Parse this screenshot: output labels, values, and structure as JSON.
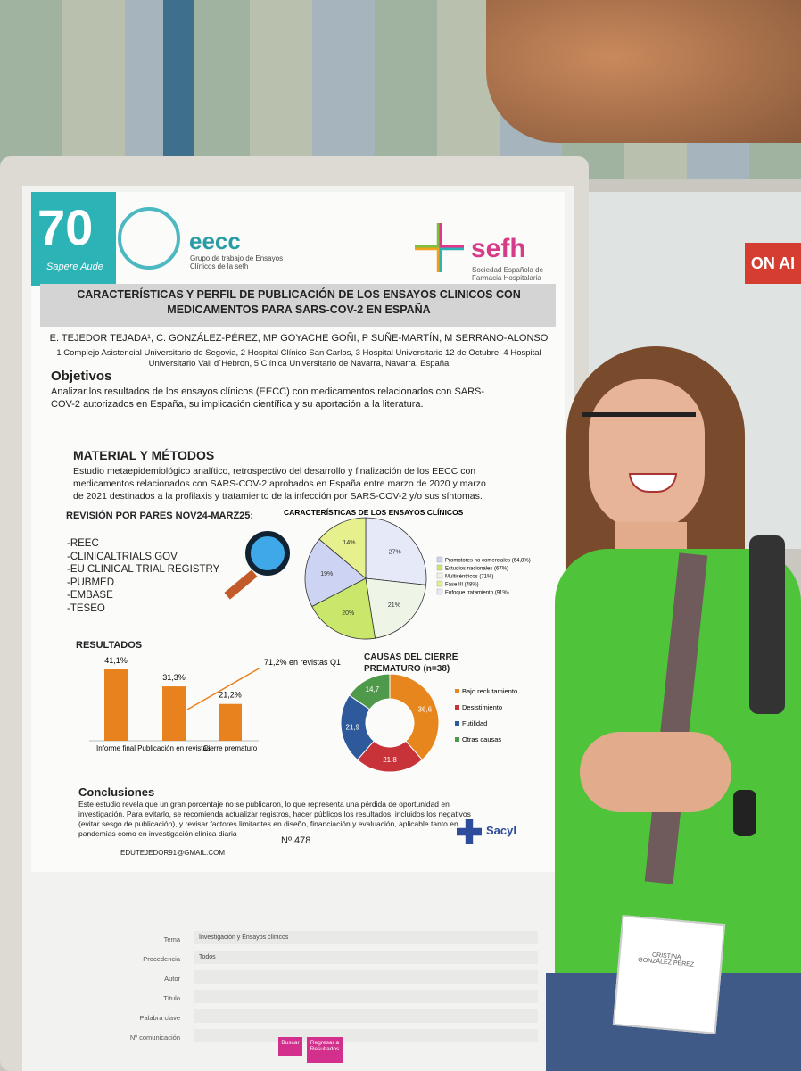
{
  "header": {
    "anniversary": "70",
    "motto": "Sapere Aude",
    "eecc": "eecc",
    "eecc_sub": "Grupo de trabajo de Ensayos Clínicos de la sefh",
    "sefh": "sefh",
    "sefh_sub": "Sociedad Española de Farmacia Hospitalaria"
  },
  "title": "CARACTERÍSTICAS Y PERFIL DE PUBLICACIÓN DE LOS ENSAYOS CLINICOS CON MEDICAMENTOS PARA SARS-COV-2 EN ESPAÑA",
  "authors": "E. TEJEDOR TEJADA¹, C. GONZÁLEZ-PÉREZ, MP GOYACHE GOÑI,  P SUÑE-MARTÍN, M SERRANO-ALONSO",
  "affiliations": "1 Complejo Asistencial Universitario de Segovia, 2 Hospital Clínico San Carlos, 3 Hospital Universitario 12 de Octubre, 4 Hospital Universitario Vall d´Hebron, 5 Clínica Universitario de Navarra, Navarra. España",
  "objetivos": {
    "heading": "Objetivos",
    "text": "Analizar los resultados de los ensayos clínicos (EECC) con medicamentos relacionados con SARS-COV-2 autorizados en España, su implicación científica y su aportación a la literatura."
  },
  "metodos": {
    "heading": "MATERIAL Y MÉTODOS",
    "text": "Estudio metaepidemiológico analítico, retrospectivo del desarrollo y finalización de los EECC con medicamentos relacionados con SARS-COV-2 aprobados en España entre marzo de 2020 y marzo de 2021 destinados a la profilaxis y tratamiento de la infección por SARS-COV-2  y/o sus síntomas."
  },
  "revision": {
    "heading": "REVISIÓN POR PARES NOV24-MARZ25:",
    "items": [
      "-REEC",
      "-CLINICALTRIALS.GOV",
      "-EU CLINICAL TRIAL REGISTRY",
      "-PUBMED",
      "-EMBASE",
      "-TESEO"
    ]
  },
  "pie": {
    "title": "CARACTERÍSTICAS DE LOS ENSAYOS CLÍNICOS",
    "values": [
      27,
      21,
      20,
      19,
      14
    ],
    "value_labels": [
      "27%",
      "21%",
      "20%",
      "19%",
      "14%"
    ],
    "colors": [
      "#e6e9f7",
      "#eef5e6",
      "#c9e86b",
      "#cdd3f2",
      "#e6f08c"
    ],
    "legend": [
      "Promotores no comerciales (64,8%)",
      "Estudios nacionales (67%)",
      "Multicéntricos (71%)",
      "Fase III (48%)",
      "Enfoque tratamiento (91%)"
    ],
    "legend_colors": [
      "#cdd3f2",
      "#c9e86b",
      "#eef5e6",
      "#e6f08c",
      "#e6e9f7"
    ]
  },
  "resultados": {
    "heading": "RESULTADOS",
    "categories": [
      "Informe final",
      "Publicación en revistas",
      "Cierre prematuro"
    ],
    "values": [
      41.1,
      31.3,
      21.2
    ],
    "value_labels": [
      "41,1%",
      "31,3%",
      "21,2%"
    ],
    "color": "#e8821e",
    "annotation": "71,2% en revistas Q1"
  },
  "donut": {
    "title": "CAUSAS DEL CIERRE PREMATURO (n=38)",
    "values": [
      36.6,
      21.8,
      21.9,
      14.7
    ],
    "value_labels": [
      "36,6",
      "21,8",
      "21,9",
      "14,7"
    ],
    "colors": [
      "#e8861e",
      "#c8333a",
      "#2e5a9c",
      "#4f9a4a"
    ],
    "legend": [
      "Bajo reclutamiento",
      "Desistimiento",
      "Futilidad",
      "Otras causas"
    ]
  },
  "conclusiones": {
    "heading": "Conclusiones",
    "text": "Este estudio revela que un gran porcentaje no se publicaron, lo que representa una pérdida de oportunidad en investigación. Para evitarlo, se recomienda actualizar registros, hacer públicos los resultados, incluidos los negativos (evitar sesgo de publicación), y revisar factores limitantes en diseño, financiación y evaluación, aplicable tanto en pandemias como en investigación clínica diaria"
  },
  "number": "Nº 478",
  "email": "EDUTEJEDOR91@GMAIL.COM",
  "sacyl": "Sacyl",
  "form": {
    "labels": [
      "Tema",
      "Procedencia",
      "Autor",
      "Título",
      "Palabra clave",
      "Nº comunicación"
    ],
    "values": [
      "Investigación y Ensayos clínicos",
      "Todos"
    ],
    "buttons": [
      "Buscar",
      "Regresar a Resultados"
    ]
  },
  "badge": "CRISTINA GONZÁLEZ PÉREZ",
  "sign": "ON AI"
}
